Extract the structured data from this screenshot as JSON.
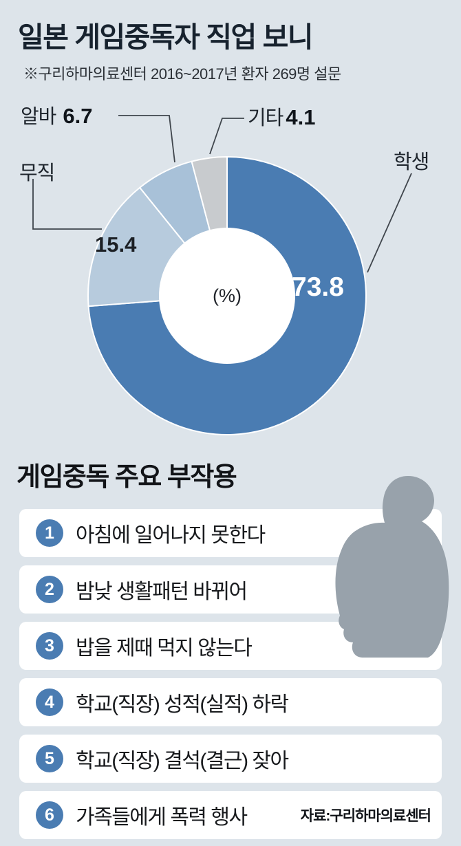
{
  "page": {
    "title": "일본 게임중독자 직업 보니",
    "subtitle": "※구리하마의료센터 2016~2017년 환자 269명 설문"
  },
  "chart_data": {
    "type": "pie",
    "title": "일본 게임중독자 직업 보니",
    "unit_label": "(%)",
    "legend_position": "callout-labels",
    "segments": [
      {
        "label": "학생",
        "value": 73.8,
        "color": "#4a7cb2"
      },
      {
        "label": "무직",
        "value": 15.4,
        "color": "#b7cbdd"
      },
      {
        "label": "알바",
        "value": 6.7,
        "color": "#a8c1d8"
      },
      {
        "label": "기타",
        "value": 4.1,
        "color": "#c8cbce"
      }
    ]
  },
  "side_effects": {
    "title": "게임중독 주요 부작용",
    "items": [
      {
        "num": "1",
        "text": "아침에 일어나지 못한다"
      },
      {
        "num": "2",
        "text": "밤낮 생활패턴 바뀌어"
      },
      {
        "num": "3",
        "text": "밥을 제때 먹지 않는다"
      },
      {
        "num": "4",
        "text": "학교(직장) 성적(실적) 하락"
      },
      {
        "num": "5",
        "text": "학교(직장) 결석(결근) 잦아"
      },
      {
        "num": "6",
        "text": "가족들에게 폭력 행사"
      }
    ],
    "source": "자료:구리하마의료센터"
  },
  "colors": {
    "background": "#dde4ea",
    "accent_blue": "#4a7cb2",
    "row_background": "#ffffff",
    "silhouette_gray": "#98a2ab"
  }
}
